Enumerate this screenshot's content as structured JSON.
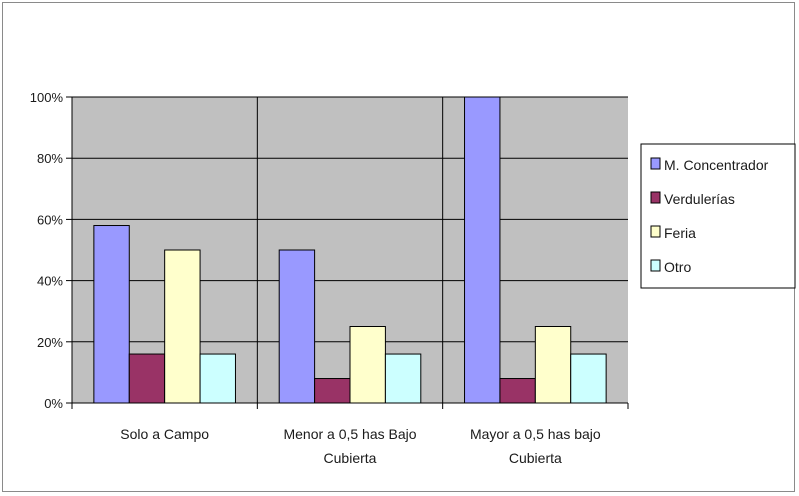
{
  "chart_data": {
    "type": "bar",
    "categories": [
      [
        "Solo a Campo"
      ],
      [
        "Menor a 0,5 has Bajo",
        "Cubierta"
      ],
      [
        "Mayor a 0,5 has bajo",
        "Cubierta"
      ]
    ],
    "series": [
      {
        "name": "M. Concentrador",
        "color": "#9999ff",
        "values": [
          58,
          50,
          100
        ]
      },
      {
        "name": "Verdulerías",
        "color": "#993366",
        "values": [
          16,
          8,
          8
        ]
      },
      {
        "name": "Feria",
        "color": "#ffffcc",
        "values": [
          50,
          25,
          25
        ]
      },
      {
        "name": "Otro",
        "color": "#ccffff",
        "values": [
          16,
          16,
          16
        ]
      }
    ],
    "y_ticks": [
      "0%",
      "20%",
      "40%",
      "60%",
      "80%",
      "100%"
    ],
    "ylim": [
      0,
      100
    ],
    "title": "",
    "xlabel": "",
    "ylabel": "",
    "grid": true,
    "plot_background": "#c0c0c0",
    "legend_position": "right"
  }
}
